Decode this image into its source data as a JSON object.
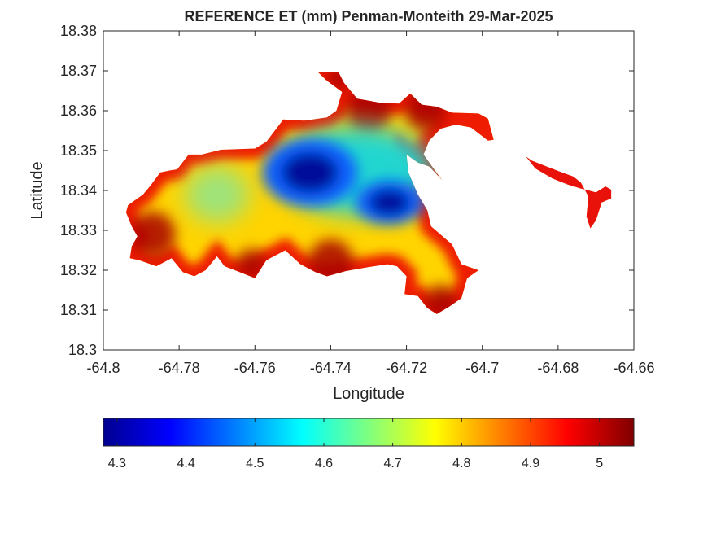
{
  "chart_data": {
    "type": "heatmap",
    "title": "REFERENCE ET (mm) Penman-Monteith 29-Mar-2025",
    "xlabel": "Longitude",
    "ylabel": "Latitude",
    "xlim": [
      -64.8,
      -64.66
    ],
    "ylim": [
      18.3,
      18.38
    ],
    "x_ticks": [
      -64.8,
      -64.78,
      -64.76,
      -64.74,
      -64.72,
      -64.7,
      -64.68,
      -64.66
    ],
    "x_tick_labels": [
      "-64.8",
      "-64.78",
      "-64.76",
      "-64.74",
      "-64.72",
      "-64.7",
      "-64.68",
      "-64.66"
    ],
    "y_ticks": [
      18.3,
      18.31,
      18.32,
      18.33,
      18.34,
      18.35,
      18.36,
      18.37,
      18.38
    ],
    "y_tick_labels": [
      "18.3",
      "18.31",
      "18.32",
      "18.33",
      "18.34",
      "18.35",
      "18.36",
      "18.37",
      "18.38"
    ],
    "grid": false,
    "colormap": "jet",
    "colorbar": {
      "orientation": "horizontal",
      "location": "below",
      "range": [
        4.28,
        5.05
      ],
      "ticks": [
        4.3,
        4.4,
        4.5,
        4.6,
        4.7,
        4.8,
        4.9,
        5.0
      ],
      "tick_labels": [
        "4.3",
        "4.4",
        "4.5",
        "4.6",
        "4.7",
        "4.8",
        "4.9",
        "5"
      ]
    },
    "land_outline": [
      [
        -64.7935,
        18.3363
      ],
      [
        -64.7895,
        18.339
      ],
      [
        -64.7875,
        18.3413
      ],
      [
        -64.785,
        18.3445
      ],
      [
        -64.7825,
        18.345
      ],
      [
        -64.7805,
        18.3453
      ],
      [
        -64.7775,
        18.349
      ],
      [
        -64.774,
        18.349
      ],
      [
        -64.769,
        18.3502
      ],
      [
        -64.76,
        18.3505
      ],
      [
        -64.757,
        18.3522
      ],
      [
        -64.7525,
        18.3578
      ],
      [
        -64.747,
        18.3575
      ],
      [
        -64.741,
        18.3583
      ],
      [
        -64.7385,
        18.36
      ],
      [
        -64.737,
        18.3647
      ],
      [
        -64.741,
        18.3675
      ],
      [
        -64.7435,
        18.3698
      ],
      [
        -64.738,
        18.3698
      ],
      [
        -64.7365,
        18.367
      ],
      [
        -64.733,
        18.363
      ],
      [
        -64.727,
        18.362
      ],
      [
        -64.722,
        18.3618
      ],
      [
        -64.719,
        18.3643
      ],
      [
        -64.716,
        18.3615
      ],
      [
        -64.712,
        18.361
      ],
      [
        -64.708,
        18.3595
      ],
      [
        -64.701,
        18.3593
      ],
      [
        -64.6985,
        18.358
      ],
      [
        -64.697,
        18.3527
      ],
      [
        -64.6985,
        18.3525
      ],
      [
        -64.703,
        18.3558
      ],
      [
        -64.707,
        18.3565
      ],
      [
        -64.711,
        18.3555
      ],
      [
        -64.714,
        18.3525
      ],
      [
        -64.7155,
        18.349
      ],
      [
        -64.7125,
        18.345
      ],
      [
        -64.7105,
        18.3425
      ],
      [
        -64.714,
        18.346
      ],
      [
        -64.717,
        18.347
      ],
      [
        -64.72,
        18.349
      ],
      [
        -64.7195,
        18.3445
      ],
      [
        -64.717,
        18.339
      ],
      [
        -64.7145,
        18.335
      ],
      [
        -64.7135,
        18.331
      ],
      [
        -64.708,
        18.3265
      ],
      [
        -64.7055,
        18.3215
      ],
      [
        -64.701,
        18.32
      ],
      [
        -64.704,
        18.318
      ],
      [
        -64.7055,
        18.313
      ],
      [
        -64.7085,
        18.311
      ],
      [
        -64.712,
        18.309
      ],
      [
        -64.7145,
        18.3105
      ],
      [
        -64.717,
        18.3135
      ],
      [
        -64.7205,
        18.314
      ],
      [
        -64.72,
        18.3185
      ],
      [
        -64.7225,
        18.321
      ],
      [
        -64.725,
        18.3215
      ],
      [
        -64.73,
        18.3208
      ],
      [
        -64.736,
        18.3198
      ],
      [
        -64.741,
        18.3185
      ],
      [
        -64.744,
        18.3195
      ],
      [
        -64.748,
        18.3215
      ],
      [
        -64.752,
        18.325
      ],
      [
        -64.757,
        18.3225
      ],
      [
        -64.76,
        18.318
      ],
      [
        -64.764,
        18.3195
      ],
      [
        -64.768,
        18.321
      ],
      [
        -64.77,
        18.3235
      ],
      [
        -64.773,
        18.32
      ],
      [
        -64.776,
        18.3185
      ],
      [
        -64.779,
        18.3195
      ],
      [
        -64.782,
        18.323
      ],
      [
        -64.786,
        18.321
      ],
      [
        -64.7905,
        18.3225
      ],
      [
        -64.793,
        18.323
      ],
      [
        -64.7925,
        18.326
      ],
      [
        -64.791,
        18.3285
      ],
      [
        -64.7925,
        18.331
      ],
      [
        -64.794,
        18.3345
      ]
    ],
    "east_islet_outline": [
      [
        -64.6885,
        18.3485
      ],
      [
        -64.686,
        18.3455
      ],
      [
        -64.6815,
        18.343
      ],
      [
        -64.6775,
        18.3415
      ],
      [
        -64.674,
        18.3405
      ],
      [
        -64.67,
        18.3395
      ],
      [
        -64.6675,
        18.341
      ],
      [
        -64.666,
        18.3402
      ],
      [
        -64.666,
        18.338
      ],
      [
        -64.6685,
        18.337
      ],
      [
        -64.67,
        18.3325
      ],
      [
        -64.6715,
        18.3305
      ],
      [
        -64.6725,
        18.3335
      ],
      [
        -64.672,
        18.3385
      ],
      [
        -64.674,
        18.342
      ],
      [
        -64.676,
        18.3435
      ],
      [
        -64.679,
        18.3445
      ],
      [
        -64.683,
        18.346
      ],
      [
        -64.687,
        18.3475
      ]
    ],
    "cold_centres": [
      {
        "lon": -64.7455,
        "lat": 18.3445,
        "rx": 0.0125,
        "ry": 0.0085
      },
      {
        "lon": -64.7245,
        "lat": 18.337,
        "rx": 0.009,
        "ry": 0.0055
      },
      {
        "lon": -64.733,
        "lat": 18.345,
        "rx": 0.02,
        "ry": 0.011
      }
    ],
    "hot_spots": [
      {
        "lon": -64.787,
        "lat": 18.329,
        "r": 0.006
      },
      {
        "lon": -64.74,
        "lat": 18.322,
        "r": 0.006
      },
      {
        "lon": -64.711,
        "lat": 18.312,
        "r": 0.0045
      },
      {
        "lon": -64.73,
        "lat": 18.36,
        "r": 0.006
      },
      {
        "lon": -64.715,
        "lat": 18.36,
        "r": 0.0055
      },
      {
        "lon": -64.738,
        "lat": 18.368,
        "r": 0.003
      },
      {
        "lon": -64.761,
        "lat": 18.3215,
        "r": 0.004
      }
    ]
  }
}
